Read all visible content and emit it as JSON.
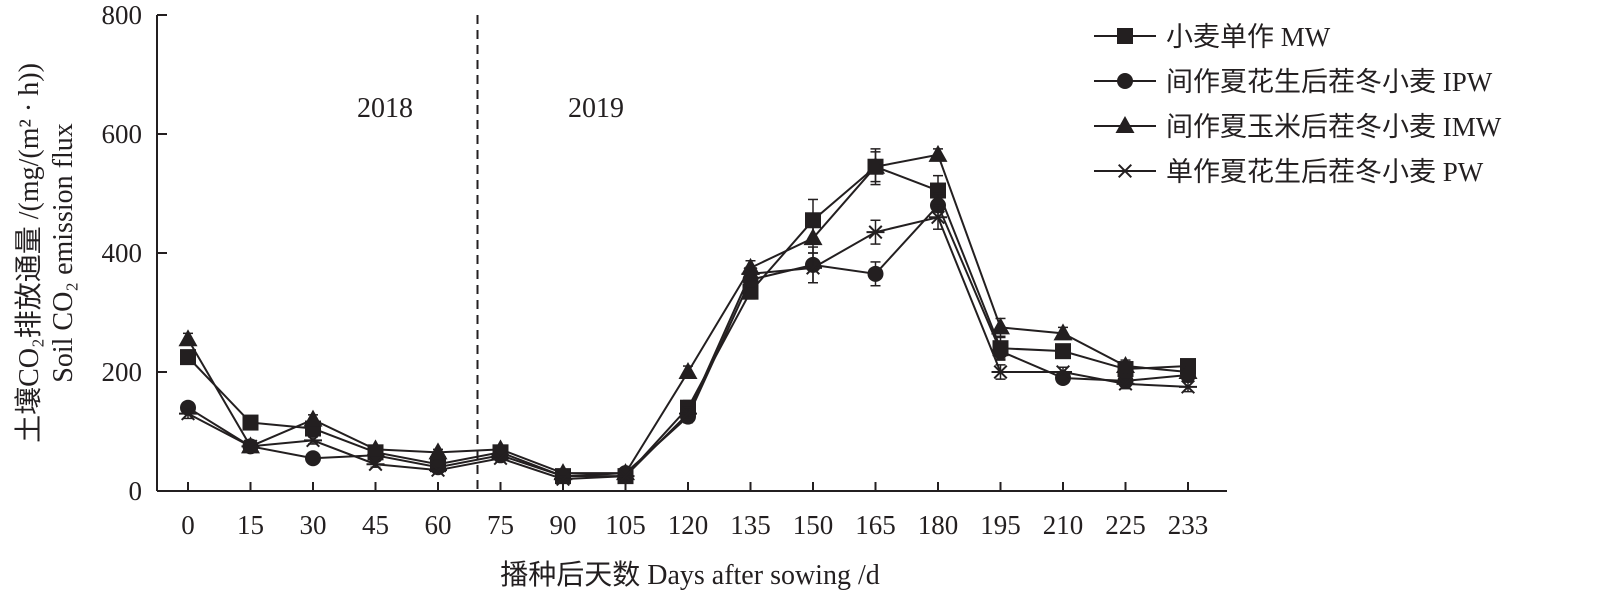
{
  "chart_data": {
    "type": "line",
    "xlabel": "播种后天数 Days after sowing /d",
    "ylabel_cn": "土壤CO₂排放通量 /(mg/(m² · h))",
    "ylabel_en": "Soil CO₂ emission flux",
    "ylim": [
      0,
      800
    ],
    "yticks": [
      "0",
      "200",
      "400",
      "600",
      "800"
    ],
    "xticks": [
      "0",
      "15",
      "30",
      "45",
      "60",
      "75",
      "90",
      "105",
      "120",
      "135",
      "150",
      "165",
      "180",
      "195",
      "210",
      "225",
      "233"
    ],
    "divider_at": 75,
    "period_labels": [
      "2018",
      "2019"
    ],
    "legend_position": "top-right",
    "grid": false,
    "series": [
      {
        "name": "小麦单作 MW",
        "marker": "square",
        "x": [
          0,
          15,
          30,
          45,
          60,
          75,
          90,
          105,
          120,
          135,
          150,
          165,
          180,
          195,
          210,
          225,
          233
        ],
        "values": [
          225,
          115,
          105,
          65,
          45,
          65,
          25,
          25,
          140,
          335,
          455,
          545,
          505,
          240,
          235,
          205,
          210
        ],
        "err": [
          10,
          8,
          8,
          5,
          5,
          6,
          4,
          4,
          12,
          12,
          35,
          30,
          25,
          18,
          10,
          10,
          8
        ]
      },
      {
        "name": "间作夏花生后茬冬小麦 IPW",
        "marker": "circle",
        "x": [
          0,
          15,
          30,
          45,
          60,
          75,
          90,
          105,
          120,
          135,
          150,
          165,
          180,
          195,
          210,
          225,
          233
        ],
        "values": [
          140,
          75,
          55,
          60,
          40,
          60,
          25,
          30,
          125,
          355,
          380,
          365,
          480,
          235,
          190,
          185,
          195
        ],
        "err": [
          8,
          6,
          5,
          5,
          4,
          5,
          4,
          4,
          10,
          12,
          30,
          20,
          20,
          15,
          8,
          8,
          8
        ]
      },
      {
        "name": "间作夏玉米后茬冬小麦 IMW",
        "marker": "triangle",
        "x": [
          0,
          15,
          30,
          45,
          60,
          75,
          90,
          105,
          120,
          135,
          150,
          165,
          180,
          195,
          210,
          225,
          233
        ],
        "values": [
          255,
          75,
          120,
          70,
          65,
          70,
          30,
          30,
          200,
          375,
          425,
          545,
          565,
          275,
          265,
          210,
          200
        ],
        "err": [
          10,
          6,
          8,
          5,
          5,
          6,
          4,
          4,
          10,
          12,
          25,
          25,
          10,
          15,
          10,
          10,
          8
        ]
      },
      {
        "name": "单作夏花生后茬冬小麦 PW",
        "marker": "asterisk",
        "x": [
          0,
          15,
          30,
          45,
          60,
          75,
          90,
          105,
          120,
          135,
          150,
          165,
          180,
          195,
          210,
          225,
          233
        ],
        "values": [
          130,
          75,
          85,
          45,
          35,
          55,
          20,
          25,
          130,
          365,
          375,
          435,
          460,
          200,
          200,
          180,
          175
        ],
        "err": [
          8,
          6,
          6,
          5,
          4,
          5,
          4,
          4,
          10,
          12,
          25,
          20,
          20,
          12,
          8,
          8,
          8
        ]
      }
    ]
  }
}
